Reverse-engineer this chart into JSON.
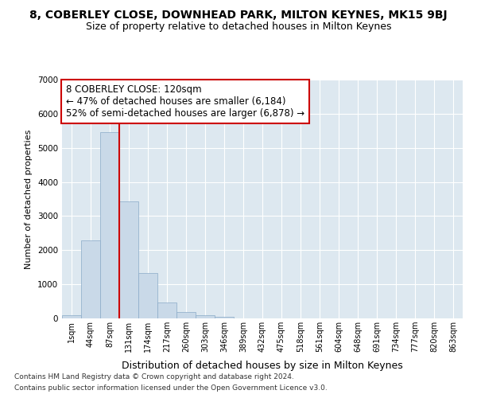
{
  "title": "8, COBERLEY CLOSE, DOWNHEAD PARK, MILTON KEYNES, MK15 9BJ",
  "subtitle": "Size of property relative to detached houses in Milton Keynes",
  "xlabel": "Distribution of detached houses by size in Milton Keynes",
  "ylabel": "Number of detached properties",
  "footnote1": "Contains HM Land Registry data © Crown copyright and database right 2024.",
  "footnote2": "Contains public sector information licensed under the Open Government Licence v3.0.",
  "annotation_title": "8 COBERLEY CLOSE: 120sqm",
  "annotation_line1": "← 47% of detached houses are smaller (6,184)",
  "annotation_line2": "52% of semi-detached houses are larger (6,878) →",
  "bar_labels": [
    "1sqm",
    "44sqm",
    "87sqm",
    "131sqm",
    "174sqm",
    "217sqm",
    "260sqm",
    "303sqm",
    "346sqm",
    "389sqm",
    "432sqm",
    "475sqm",
    "518sqm",
    "561sqm",
    "604sqm",
    "648sqm",
    "691sqm",
    "734sqm",
    "777sqm",
    "820sqm",
    "863sqm"
  ],
  "bar_values": [
    100,
    2280,
    5450,
    3420,
    1330,
    460,
    180,
    100,
    50,
    10,
    0,
    0,
    0,
    0,
    0,
    0,
    0,
    0,
    0,
    0,
    0
  ],
  "bar_color": "#c9d9e8",
  "bar_edgecolor": "#8aaac8",
  "vline_color": "#cc0000",
  "ylim": [
    0,
    7000
  ],
  "yticks": [
    0,
    1000,
    2000,
    3000,
    4000,
    5000,
    6000,
    7000
  ],
  "plot_bg": "#dde8f0",
  "grid_color": "#ffffff",
  "title_fontsize": 10,
  "subtitle_fontsize": 9,
  "annotation_box_edgecolor": "#cc0000",
  "annotation_fontsize": 8.5
}
